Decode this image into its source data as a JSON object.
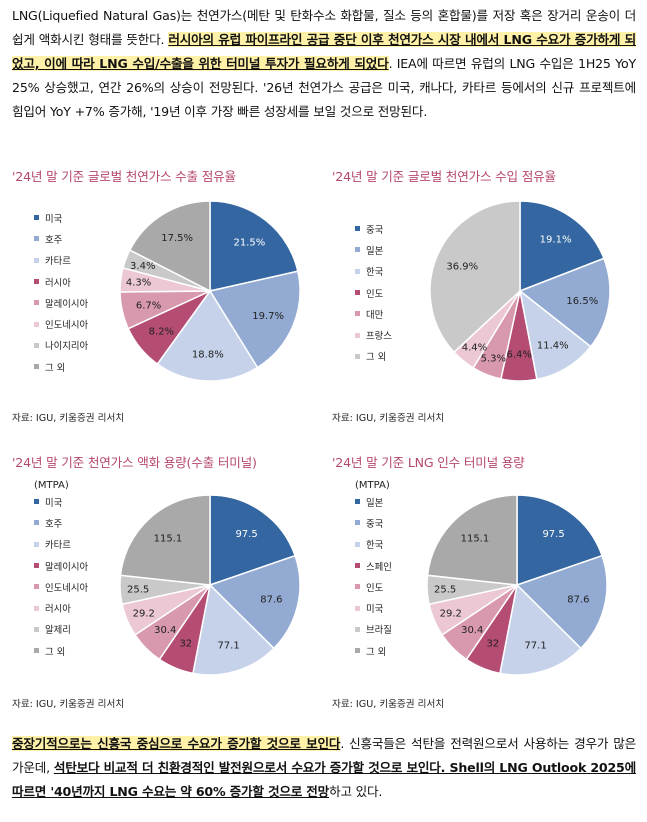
{
  "intro": {
    "p1": "LNG(Liquefied Natural Gas)는 천연가스(메탄 및 탄화수소 화합물, 질소 등의 혼합물)를 저장 혹은 장거리 운송이 더 쉽게 액화시킨 형태를 뜻한다. ",
    "p1_highlight": "러시아의 유럽 파이프라인 공급 중단 이후 천연가스 시장 내에서 LNG 수요가 증가하게 되었고, 이에 따라 LNG 수입/수출을 위한 터미널 투자가 필요하게 되었다",
    "p1_rest": ". IEA에 따르면 유럽의 LNG 수입은 1H25 YoY 25% 상승했고, 연간 26%의 상승이 전망된다. '26년 천연가스 공급은 미국, 캐나다, 카타르 등에서의 신규 프로젝트에 힘입어 YoY +7% 증가해, '19년 이후 가장 빠른 성장세를 보일 것으로 전망된다."
  },
  "outro": {
    "u1": "중장기적으로는 신흥국 중심으로 수요가 증가할 것으로 보인다",
    "t1": ". 신흥국들은 석탄을 전력원으로서 사용하는 경우가 많은 가운데, ",
    "u2": "석탄보다 비교적 더 친환경적인 발전원으로서 수요가 증가할 것으로 보인다. Shell의 LNG Outlook 2025에 따르면 '40년까지 LNG 수요는 약 60% 증가할 것으로 전망",
    "t2": "하고 있다."
  },
  "colors": [
    "#3466a1",
    "#93abd3",
    "#c5d2ea",
    "#b44c73",
    "#d898ad",
    "#ebc8d3",
    "#c9c9c9",
    "#a9a9a9"
  ],
  "chart_data": [
    {
      "type": "pie",
      "title": "'24년 말 기준 글로벌 천연가스 수출 점유율",
      "unit": "",
      "source": "자료: IGU, 키움증권 리서치",
      "labels": [
        "미국",
        "호주",
        "카타르",
        "러시아",
        "말레이시아",
        "인도네시아",
        "나이지리아",
        "그 외"
      ],
      "values": [
        21.5,
        19.7,
        18.8,
        8.2,
        6.7,
        4.3,
        3.4,
        17.5
      ],
      "value_labels": [
        "21.5%",
        "19.7%",
        "18.8%",
        "8.2%",
        "6.7%",
        "4.3%",
        "3.4%",
        "17.5%"
      ]
    },
    {
      "type": "pie",
      "title": "'24년 말 기준 글로벌 천연가스 수입 점유율",
      "unit": "",
      "source": "자료: IGU, 키움증권 리서치",
      "labels": [
        "중국",
        "일본",
        "한국",
        "인도",
        "대만",
        "프랑스",
        "그 외"
      ],
      "values": [
        19.1,
        16.5,
        11.4,
        6.4,
        5.3,
        4.4,
        36.9
      ],
      "value_labels": [
        "19.1%",
        "16.5%",
        "11.4%",
        "6.4%",
        "5.3%",
        "4.4%",
        "36.9%"
      ],
      "slice_colors": [
        "#3466a1",
        "#93abd3",
        "#c5d2ea",
        "#b44c73",
        "#d898ad",
        "#ebc8d3",
        "#c9c9c9"
      ]
    },
    {
      "type": "pie",
      "title": "'24년 말 기준 천연가스 액화 용량(수출 터미널)",
      "unit": "(MTPA)",
      "source": "자료: IGU, 키움증권 리서치",
      "labels": [
        "미국",
        "호주",
        "카타르",
        "말레이시아",
        "인도네시아",
        "러시아",
        "알제리",
        "그 외"
      ],
      "values": [
        97.5,
        87.6,
        77.1,
        32,
        30.4,
        29.2,
        25.5,
        115.1
      ],
      "value_labels": [
        "97.5",
        "87.6",
        "77.1",
        "32",
        "30.4",
        "29.2",
        "25.5",
        "115.1"
      ]
    },
    {
      "type": "pie",
      "title": "'24년 말 기준 LNG 인수 터미널 용량",
      "unit": "(MTPA)",
      "source": "자료: IGU, 키움증권 리서치",
      "labels": [
        "일본",
        "중국",
        "한국",
        "스페인",
        "인도",
        "미국",
        "브라질",
        "그 외"
      ],
      "values": [
        97.5,
        87.6,
        77.1,
        32,
        30.4,
        29.2,
        25.5,
        115.1
      ],
      "value_labels": [
        "97.5",
        "87.6",
        "77.1",
        "32",
        "30.4",
        "29.2",
        "25.5",
        "115.1"
      ]
    }
  ]
}
